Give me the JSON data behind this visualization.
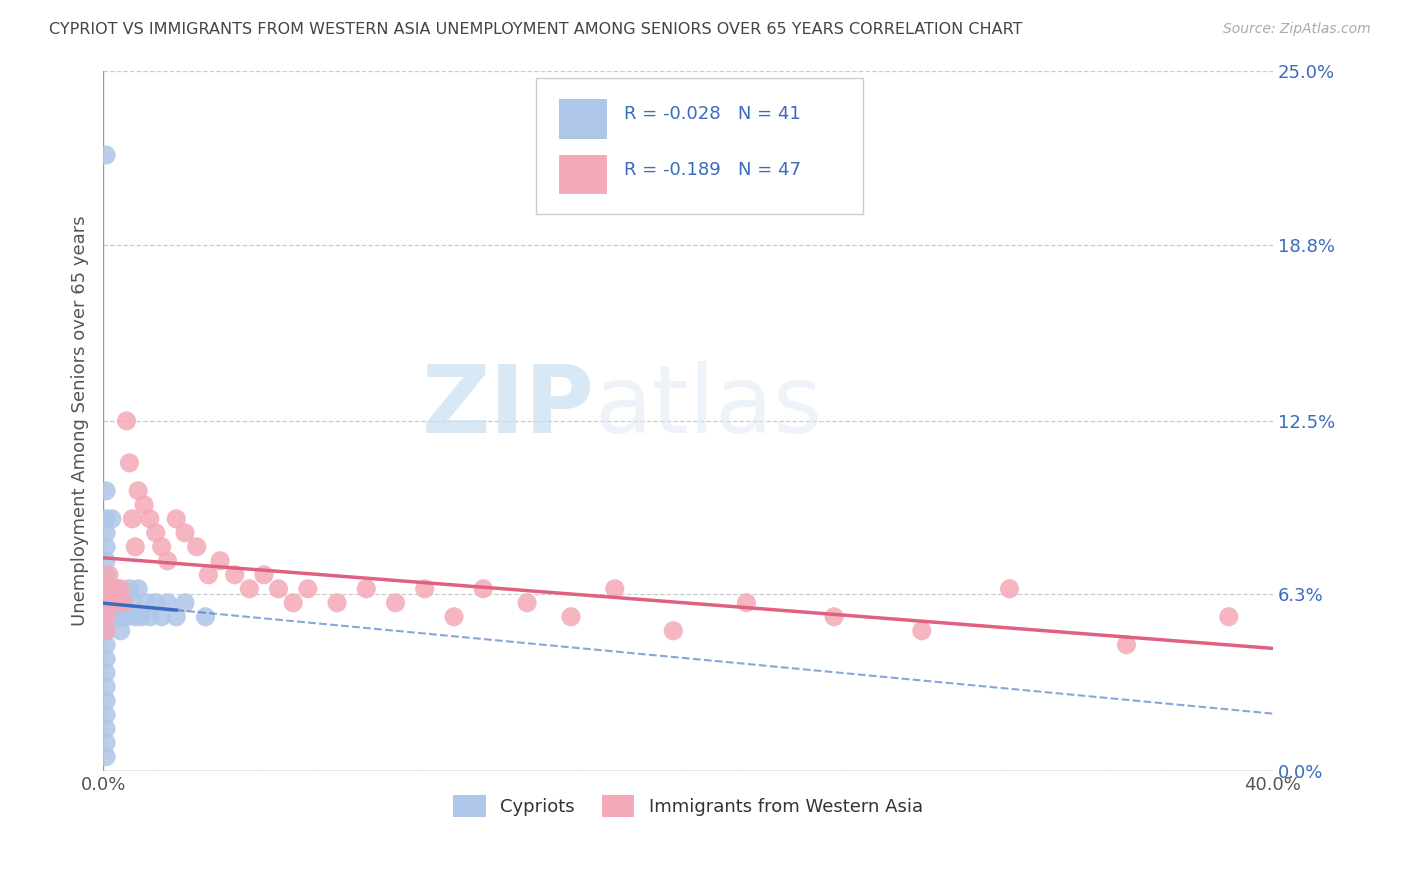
{
  "title": "CYPRIOT VS IMMIGRANTS FROM WESTERN ASIA UNEMPLOYMENT AMONG SENIORS OVER 65 YEARS CORRELATION CHART",
  "source": "Source: ZipAtlas.com",
  "ylabel": "Unemployment Among Seniors over 65 years",
  "xlim": [
    0.0,
    0.4
  ],
  "ylim": [
    0.0,
    0.25
  ],
  "yticks": [
    0.0,
    0.063,
    0.125,
    0.188,
    0.25
  ],
  "ytick_labels": [
    "0.0%",
    "6.3%",
    "12.5%",
    "18.8%",
    "25.0%"
  ],
  "xticks": [
    0.0,
    0.4
  ],
  "xtick_labels": [
    "0.0%",
    "40.0%"
  ],
  "grid_color": "#cccccc",
  "background_color": "#ffffff",
  "cypriot_color": "#aec6e8",
  "immigrant_color": "#f4a9b8",
  "cypriot_line_color": "#3a6bbf",
  "immigrant_line_color": "#e06080",
  "R_cypriot": -0.028,
  "N_cypriot": 41,
  "R_immigrant": -0.189,
  "N_immigrant": 47,
  "watermark_zip": "ZIP",
  "watermark_atlas": "atlas",
  "cypriot_label": "Cypriots",
  "immigrant_label": "Immigrants from Western Asia",
  "cypriot_x": [
    0.001,
    0.001,
    0.001,
    0.001,
    0.001,
    0.001,
    0.001,
    0.001,
    0.001,
    0.001,
    0.001,
    0.001,
    0.001,
    0.001,
    0.001,
    0.001,
    0.001,
    0.001,
    0.001,
    0.001,
    0.003,
    0.003,
    0.004,
    0.005,
    0.006,
    0.006,
    0.007,
    0.008,
    0.009,
    0.01,
    0.011,
    0.012,
    0.013,
    0.015,
    0.016,
    0.018,
    0.02,
    0.022,
    0.025,
    0.028,
    0.035
  ],
  "cypriot_y": [
    0.22,
    0.1,
    0.09,
    0.085,
    0.08,
    0.075,
    0.07,
    0.065,
    0.06,
    0.055,
    0.05,
    0.045,
    0.04,
    0.035,
    0.03,
    0.025,
    0.02,
    0.015,
    0.01,
    0.005,
    0.09,
    0.06,
    0.055,
    0.065,
    0.055,
    0.05,
    0.06,
    0.055,
    0.065,
    0.06,
    0.055,
    0.065,
    0.055,
    0.06,
    0.055,
    0.06,
    0.055,
    0.06,
    0.055,
    0.06,
    0.055
  ],
  "immigrant_x": [
    0.001,
    0.001,
    0.001,
    0.001,
    0.002,
    0.003,
    0.004,
    0.005,
    0.006,
    0.007,
    0.008,
    0.009,
    0.01,
    0.011,
    0.012,
    0.014,
    0.016,
    0.018,
    0.02,
    0.022,
    0.025,
    0.028,
    0.032,
    0.036,
    0.04,
    0.045,
    0.05,
    0.055,
    0.06,
    0.065,
    0.07,
    0.08,
    0.09,
    0.1,
    0.11,
    0.12,
    0.13,
    0.145,
    0.16,
    0.175,
    0.195,
    0.22,
    0.25,
    0.28,
    0.31,
    0.35,
    0.385
  ],
  "immigrant_y": [
    0.065,
    0.06,
    0.055,
    0.05,
    0.07,
    0.065,
    0.065,
    0.06,
    0.065,
    0.06,
    0.125,
    0.11,
    0.09,
    0.08,
    0.1,
    0.095,
    0.09,
    0.085,
    0.08,
    0.075,
    0.09,
    0.085,
    0.08,
    0.07,
    0.075,
    0.07,
    0.065,
    0.07,
    0.065,
    0.06,
    0.065,
    0.06,
    0.065,
    0.06,
    0.065,
    0.055,
    0.065,
    0.06,
    0.055,
    0.065,
    0.05,
    0.06,
    0.055,
    0.05,
    0.065,
    0.045,
    0.055
  ]
}
